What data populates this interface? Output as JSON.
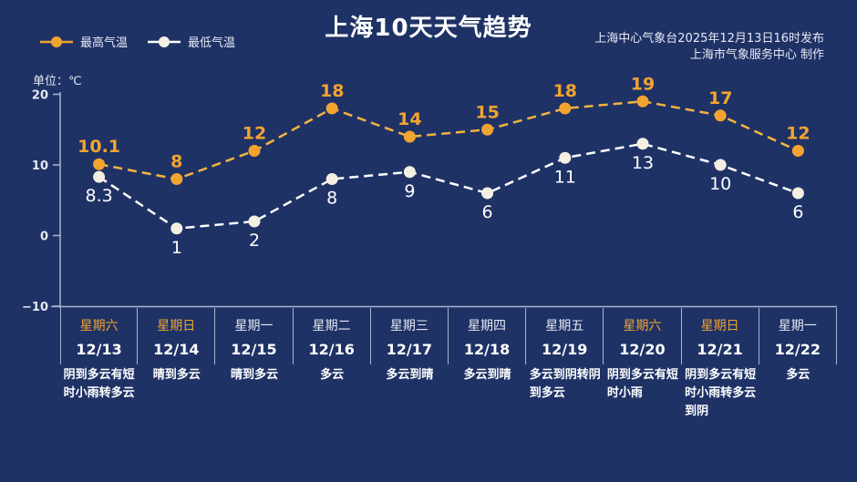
{
  "header": {
    "title": "上海10天天气趋势",
    "source_line1": "上海中心气象台2025年12月13日16时发布",
    "source_line2": "上海市气象服务中心 制作"
  },
  "legend": {
    "high_label": "最高气温",
    "low_label": "最低气温"
  },
  "axis": {
    "unit_label": "单位：℃",
    "ticks": [
      "20",
      "10",
      "0",
      "−10"
    ]
  },
  "colors": {
    "background": "#1f3266",
    "high": "#f2a431",
    "low": "#f3efe3",
    "weekend": "#f2a431"
  },
  "days": [
    {
      "weekday": "星期六",
      "date": "12/13",
      "weather": "阴到多云有短时小雨转多云",
      "weekend": true
    },
    {
      "weekday": "星期日",
      "date": "12/14",
      "weather": "晴到多云",
      "weekend": true
    },
    {
      "weekday": "星期一",
      "date": "12/15",
      "weather": "晴到多云",
      "weekend": false
    },
    {
      "weekday": "星期二",
      "date": "12/16",
      "weather": "多云",
      "weekend": false
    },
    {
      "weekday": "星期三",
      "date": "12/17",
      "weather": "多云到晴",
      "weekend": false
    },
    {
      "weekday": "星期四",
      "date": "12/18",
      "weather": "多云到晴",
      "weekend": false
    },
    {
      "weekday": "星期五",
      "date": "12/19",
      "weather": "多云到阴转阴到多云",
      "weekend": false
    },
    {
      "weekday": "星期六",
      "date": "12/20",
      "weather": "阴到多云有短时小雨",
      "weekend": true
    },
    {
      "weekday": "星期日",
      "date": "12/21",
      "weather": "阴到多云有短时小雨转多云到阴",
      "weekend": true
    },
    {
      "weekday": "星期一",
      "date": "12/22",
      "weather": "多云",
      "weekend": false
    }
  ],
  "chart_data": {
    "type": "line",
    "title": "上海10天天气趋势",
    "xlabel": "",
    "ylabel": "单位：℃",
    "ylim": [
      -10,
      20
    ],
    "yticks": [
      -10,
      0,
      10,
      20
    ],
    "grid": false,
    "legend_position": "top-left",
    "categories": [
      "12/13",
      "12/14",
      "12/15",
      "12/16",
      "12/17",
      "12/18",
      "12/19",
      "12/20",
      "12/21",
      "12/22"
    ],
    "weekdays": [
      "星期六",
      "星期日",
      "星期一",
      "星期二",
      "星期三",
      "星期四",
      "星期五",
      "星期六",
      "星期日",
      "星期一"
    ],
    "series": [
      {
        "name": "最高气温",
        "values": [
          10.1,
          8,
          12,
          18,
          14,
          15,
          18,
          19,
          17,
          12
        ],
        "labels": [
          "10.1",
          "8",
          "12",
          "18",
          "14",
          "15",
          "18",
          "19",
          "17",
          "12"
        ],
        "color": "#f2a431",
        "style": "dashed"
      },
      {
        "name": "最低气温",
        "values": [
          8.3,
          1,
          2,
          8,
          9,
          6,
          11,
          13,
          10,
          6
        ],
        "labels": [
          "8.3",
          "1",
          "2",
          "8",
          "9",
          "6",
          "11",
          "13",
          "10",
          "6"
        ],
        "color": "#f3efe3",
        "style": "dashed"
      }
    ]
  }
}
